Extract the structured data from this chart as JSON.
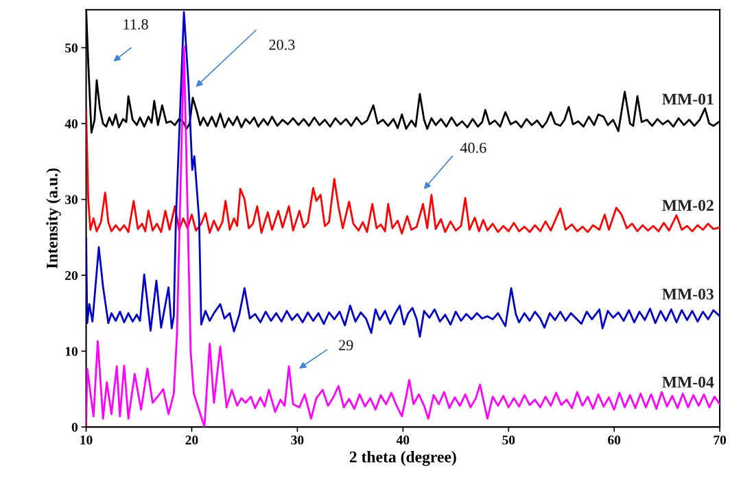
{
  "chart_data": {
    "type": "line",
    "xlabel": "2 theta (degree)",
    "ylabel": "Intensity (a.u.)",
    "xlim": [
      10,
      70
    ],
    "xticks": [
      10,
      20,
      30,
      40,
      50,
      60,
      70
    ],
    "ylim": [
      0,
      55
    ],
    "yticks": [
      0,
      10,
      20,
      30,
      40,
      50
    ],
    "annotations": [
      "11.8",
      "20.3",
      "40.6",
      "29"
    ],
    "series": [
      {
        "name": "MM-01",
        "color": "#000000",
        "x": [
          10.0,
          10.2,
          10.5,
          10.8,
          11.0,
          11.3,
          11.6,
          11.9,
          12.2,
          12.5,
          12.8,
          13.1,
          13.5,
          13.8,
          14.0,
          14.4,
          14.8,
          15.1,
          15.5,
          15.9,
          16.2,
          16.45,
          16.8,
          17.2,
          17.6,
          18.0,
          18.4,
          18.8,
          19.2,
          19.5,
          19.8,
          20.1,
          20.5,
          20.8,
          21.1,
          21.5,
          21.9,
          22.3,
          22.7,
          23.1,
          23.5,
          23.9,
          24.3,
          24.7,
          25.1,
          25.5,
          25.9,
          26.3,
          26.8,
          27.2,
          27.6,
          28.1,
          28.6,
          29.1,
          29.6,
          30.1,
          30.6,
          31.1,
          31.6,
          32.1,
          32.6,
          33.1,
          33.6,
          34.1,
          34.6,
          35.1,
          35.6,
          36.1,
          36.6,
          37.2,
          37.6,
          38.1,
          38.6,
          39.1,
          39.5,
          39.9,
          40.3,
          40.8,
          41.2,
          41.6,
          42.0,
          42.3,
          42.7,
          43.1,
          43.6,
          44.1,
          44.6,
          45.1,
          45.6,
          46.1,
          46.6,
          47.1,
          47.5,
          47.8,
          48.2,
          48.7,
          49.2,
          49.7,
          50.2,
          50.7,
          51.2,
          51.7,
          52.2,
          52.7,
          53.2,
          53.6,
          54.0,
          54.4,
          54.9,
          55.3,
          55.7,
          56.1,
          56.6,
          57.1,
          57.6,
          58.1,
          58.5,
          59.0,
          59.4,
          59.9,
          60.4,
          61.0,
          61.5,
          61.8,
          62.2,
          62.6,
          63.1,
          63.6,
          64.1,
          64.6,
          65.1,
          65.6,
          66.1,
          66.6,
          67.1,
          67.6,
          68.1,
          68.6,
          69.0,
          69.4,
          70.0
        ],
        "values": [
          55,
          48,
          38.8,
          40.5,
          45.7,
          42,
          40,
          39.6,
          40.8,
          39.8,
          41.2,
          39.5,
          40.6,
          40.2,
          43.6,
          40.5,
          39.8,
          40.8,
          39.6,
          40.9,
          40.1,
          43,
          39.8,
          42.4,
          40.1,
          40.3,
          39.8,
          40.6,
          40.2,
          39.3,
          40.0,
          43.4,
          41.5,
          39.8,
          40.8,
          39.7,
          40.9,
          39.6,
          41.3,
          39.5,
          40.7,
          39.8,
          40.9,
          39.5,
          40.6,
          40.0,
          40.8,
          39.6,
          40.6,
          39.8,
          40.9,
          39.7,
          40.5,
          39.9,
          40.7,
          39.8,
          40.6,
          39.7,
          40.8,
          39.8,
          40.5,
          39.6,
          40.7,
          39.9,
          40.6,
          39.7,
          40.8,
          39.9,
          40.4,
          42.4,
          40.0,
          40.5,
          39.7,
          40.6,
          39.4,
          41.2,
          39.3,
          40.4,
          39.6,
          43.9,
          40.5,
          39.3,
          40.7,
          39.8,
          40.6,
          39.6,
          40.8,
          39.7,
          40.3,
          39.5,
          40.6,
          39.6,
          40.2,
          41.8,
          39.9,
          40.4,
          39.6,
          41.5,
          39.9,
          40.3,
          39.5,
          40.6,
          39.8,
          40.4,
          39.5,
          40.2,
          41.5,
          40.0,
          39.7,
          40.5,
          42.2,
          39.9,
          40.3,
          39.6,
          40.9,
          39.8,
          41.2,
          40.9,
          39.8,
          40.5,
          39.0,
          44.2,
          40.0,
          39.7,
          43.6,
          40.2,
          40.5,
          39.7,
          40.6,
          39.9,
          40.4,
          39.6,
          40.7,
          39.8,
          40.5,
          39.7,
          40.5,
          42.0,
          40.0,
          39.7,
          40.3
        ]
      },
      {
        "name": "MM-02",
        "color": "#ff0000",
        "x": [
          10.0,
          10.2,
          10.4,
          10.7,
          11.0,
          11.4,
          11.8,
          12.1,
          12.4,
          12.8,
          13.2,
          13.6,
          14.0,
          14.5,
          14.9,
          15.3,
          15.6,
          15.9,
          16.3,
          16.7,
          17.1,
          17.5,
          17.9,
          18.4,
          18.8,
          19.2,
          19.6,
          20.0,
          20.4,
          20.9,
          21.3,
          21.7,
          22.1,
          22.5,
          22.9,
          23.2,
          23.6,
          24.0,
          24.3,
          24.6,
          25.0,
          25.4,
          25.8,
          26.2,
          26.6,
          27.2,
          27.6,
          28.2,
          28.6,
          29.2,
          29.6,
          30.2,
          30.6,
          31.0,
          31.5,
          31.8,
          32.2,
          32.6,
          33.0,
          33.5,
          33.9,
          34.3,
          34.9,
          35.3,
          35.8,
          36.2,
          36.6,
          37.1,
          37.5,
          37.9,
          38.3,
          38.6,
          39.0,
          39.5,
          39.9,
          40.4,
          40.8,
          41.3,
          41.9,
          42.3,
          42.7,
          43.1,
          43.6,
          44.0,
          44.5,
          45.0,
          45.5,
          45.9,
          46.3,
          46.8,
          47.2,
          47.6,
          48.0,
          48.5,
          49.0,
          49.5,
          50.0,
          50.5,
          51.0,
          51.5,
          52.0,
          52.5,
          53.0,
          53.5,
          54.0,
          54.9,
          55.4,
          56.0,
          56.5,
          57.0,
          57.5,
          58.0,
          58.6,
          59.1,
          59.5,
          60.2,
          60.7,
          61.2,
          61.7,
          62.2,
          62.7,
          63.2,
          63.7,
          64.2,
          64.7,
          65.2,
          65.9,
          66.4,
          66.9,
          67.4,
          67.9,
          68.4,
          68.9,
          69.4,
          70.0
        ],
        "values": [
          41.7,
          30,
          26,
          27.5,
          25.8,
          27,
          30.9,
          27,
          25.8,
          26.6,
          25.9,
          26.6,
          25.7,
          29.8,
          26.1,
          26.8,
          25.8,
          28.5,
          25.9,
          26.8,
          25.7,
          28.5,
          26.0,
          29.1,
          26.0,
          27.5,
          26.2,
          28.0,
          25.9,
          26.8,
          28.2,
          25.6,
          27.2,
          25.9,
          27.0,
          29.8,
          26.0,
          27.5,
          26.5,
          31.4,
          30.0,
          26.2,
          26.8,
          29.1,
          25.6,
          28.3,
          26.0,
          28.5,
          26.3,
          29.1,
          25.9,
          28.5,
          26.3,
          27.0,
          31.5,
          29.8,
          30.6,
          26.5,
          27.0,
          32.7,
          29.0,
          26.2,
          29.7,
          26.8,
          25.9,
          27.0,
          25.7,
          29.4,
          26.2,
          26.7,
          25.8,
          29.4,
          26.2,
          27.2,
          25.5,
          27.8,
          26.0,
          26.4,
          29.4,
          26.2,
          30.6,
          26.1,
          27.4,
          25.7,
          27.1,
          25.9,
          26.5,
          30.2,
          26.0,
          27.6,
          25.8,
          27.3,
          25.9,
          26.8,
          25.7,
          26.5,
          25.8,
          26.9,
          25.8,
          26.4,
          25.7,
          26.6,
          25.8,
          27.1,
          25.9,
          28.8,
          26.0,
          26.7,
          25.8,
          26.4,
          25.7,
          26.6,
          26.0,
          28.0,
          26.0,
          28.9,
          28.0,
          26.2,
          26.8,
          25.8,
          26.6,
          25.9,
          26.5,
          25.8,
          26.9,
          25.9,
          27.9,
          26.0,
          26.5,
          25.8,
          26.6,
          26.0,
          26.8,
          26.1,
          26.3
        ]
      },
      {
        "name": "MM-03",
        "color": "#0000cc",
        "x": [
          10.0,
          10.1,
          10.3,
          10.6,
          11.2,
          11.6,
          12.1,
          12.4,
          12.8,
          13.2,
          13.6,
          14.0,
          14.4,
          14.8,
          15.1,
          15.5,
          16.1,
          16.65,
          17.1,
          17.8,
          18.1,
          18.3,
          18.5,
          19.26,
          19.7,
          20.05,
          20.25,
          20.7,
          20.9,
          21.3,
          21.7,
          22.1,
          22.7,
          23.1,
          23.6,
          24.0,
          24.5,
          25.0,
          25.5,
          26.0,
          26.5,
          27.0,
          27.5,
          28.0,
          28.5,
          29.0,
          29.5,
          30.0,
          30.5,
          31.0,
          31.5,
          32.0,
          32.5,
          33.0,
          33.5,
          34.0,
          34.5,
          35.0,
          35.5,
          36.0,
          36.5,
          37.0,
          37.4,
          37.8,
          38.3,
          38.8,
          39.2,
          39.7,
          40.1,
          40.5,
          40.9,
          41.3,
          41.6,
          42.0,
          42.5,
          43.0,
          43.5,
          44.0,
          44.5,
          45.0,
          45.5,
          46.0,
          46.5,
          47.0,
          47.5,
          48.0,
          48.5,
          49.0,
          49.7,
          50.25,
          50.7,
          51.0,
          51.5,
          52.0,
          52.5,
          53.0,
          53.4,
          53.9,
          54.4,
          54.9,
          55.4,
          55.9,
          56.4,
          56.9,
          57.4,
          57.9,
          58.6,
          58.9,
          59.4,
          59.9,
          60.4,
          60.9,
          61.4,
          61.9,
          62.4,
          62.9,
          63.4,
          63.9,
          64.4,
          64.9,
          65.4,
          65.9,
          66.4,
          66.9,
          67.4,
          67.9,
          68.4,
          68.9,
          69.4,
          70.0
        ],
        "values": [
          24.9,
          13.7,
          16.2,
          13.9,
          23.7,
          18.5,
          13.7,
          15.0,
          14.0,
          15.2,
          13.8,
          15.0,
          13.9,
          14.8,
          14.0,
          20.1,
          12.7,
          19.3,
          13.1,
          18.4,
          13.0,
          14.6,
          27.3,
          54.7,
          45,
          33.9,
          35.7,
          27.3,
          13.5,
          15.3,
          14.0,
          15.0,
          16.2,
          14.3,
          15.0,
          12.6,
          14.8,
          18.3,
          14.3,
          14.9,
          13.8,
          15.2,
          14.0,
          15.0,
          13.9,
          15.3,
          14.1,
          14.9,
          13.8,
          15.1,
          14.0,
          15.0,
          13.6,
          15.1,
          14.2,
          15.2,
          13.4,
          16.0,
          13.9,
          15.1,
          14.3,
          12.4,
          15.5,
          14.1,
          15.3,
          13.6,
          14.8,
          16.0,
          13.5,
          15.0,
          15.7,
          14.2,
          11.9,
          15.3,
          14.4,
          15.5,
          13.9,
          14.8,
          13.5,
          15.2,
          14.0,
          14.9,
          14.2,
          15.0,
          14.3,
          14.6,
          14.2,
          15.0,
          13.3,
          18.3,
          14.8,
          13.8,
          15.0,
          14.0,
          15.2,
          14.3,
          13.1,
          15.0,
          14.1,
          15.2,
          14.0,
          15.0,
          14.3,
          13.6,
          15.2,
          14.2,
          15.5,
          13.0,
          15.3,
          14.4,
          15.1,
          14.0,
          15.4,
          13.8,
          15.2,
          14.1,
          15.6,
          13.7,
          15.3,
          14.0,
          15.5,
          13.8,
          15.4,
          14.1,
          15.3,
          13.9,
          15.2,
          14.2,
          15.4,
          14.6
        ]
      },
      {
        "name": "MM-04",
        "color": "#ff00ff",
        "x": [
          10.0,
          10.1,
          10.7,
          11.1,
          11.6,
          11.96,
          12.4,
          12.9,
          13.2,
          13.6,
          14.0,
          14.6,
          15.2,
          15.8,
          16.3,
          17.0,
          17.3,
          17.8,
          18.3,
          18.6,
          19.26,
          19.9,
          20.2,
          21.2,
          21.7,
          22.1,
          22.7,
          23.3,
          23.8,
          24.3,
          24.7,
          25.1,
          25.6,
          26.0,
          26.5,
          26.9,
          27.3,
          27.9,
          28.4,
          28.8,
          29.2,
          29.6,
          30.2,
          30.7,
          31.3,
          31.8,
          32.4,
          32.9,
          33.4,
          33.9,
          34.4,
          34.9,
          35.4,
          35.9,
          36.4,
          36.9,
          37.4,
          37.9,
          38.4,
          38.9,
          39.4,
          39.9,
          40.3,
          40.6,
          41.0,
          41.5,
          42.0,
          42.4,
          42.9,
          43.4,
          43.9,
          44.4,
          44.9,
          45.4,
          45.9,
          46.4,
          46.9,
          47.3,
          47.7,
          48.0,
          48.5,
          49.0,
          49.5,
          50.0,
          50.5,
          51.0,
          51.5,
          52.0,
          52.5,
          53.0,
          53.5,
          54.0,
          54.5,
          55.0,
          55.5,
          56.0,
          56.5,
          57.0,
          57.5,
          58.0,
          58.5,
          59.0,
          59.5,
          60.0,
          60.5,
          61.0,
          61.5,
          62.0,
          62.5,
          63.0,
          63.5,
          64.0,
          64.5,
          65.0,
          65.5,
          66.0,
          66.5,
          67.0,
          67.5,
          68.0,
          68.5,
          69.0,
          69.5,
          70.0
        ],
        "values": [
          0.2,
          7.7,
          1.4,
          11.3,
          1.1,
          5.9,
          1.7,
          8.0,
          1.4,
          8.1,
          1.1,
          7.0,
          2.3,
          7.7,
          3.2,
          4.4,
          5.0,
          1.7,
          4.4,
          12.2,
          50.2,
          9.9,
          4.4,
          0,
          11.0,
          3.2,
          10.6,
          2.6,
          4.9,
          2.8,
          3.8,
          3.2,
          4.0,
          2.5,
          3.9,
          2.7,
          4.9,
          2.0,
          3.6,
          2.8,
          8.0,
          3.0,
          2.6,
          4.3,
          1.1,
          3.8,
          4.9,
          2.8,
          3.9,
          5.4,
          2.6,
          3.7,
          2.4,
          4.3,
          2.7,
          3.8,
          2.3,
          4.2,
          3.0,
          4.5,
          2.8,
          1.4,
          4.0,
          6.2,
          3.0,
          4.3,
          2.8,
          1.1,
          4.2,
          3.0,
          4.6,
          2.5,
          3.9,
          2.8,
          4.3,
          2.6,
          3.8,
          5.6,
          3.0,
          1.1,
          4.0,
          2.8,
          4.1,
          2.6,
          3.8,
          2.7,
          4.2,
          2.9,
          3.6,
          2.6,
          4.0,
          2.8,
          4.5,
          2.9,
          3.6,
          2.5,
          4.6,
          2.8,
          4.0,
          2.4,
          4.3,
          2.7,
          3.9,
          2.3,
          4.5,
          2.6,
          4.2,
          2.5,
          4.4,
          2.6,
          4.3,
          2.4,
          4.6,
          2.7,
          4.1,
          2.5,
          4.4,
          2.6,
          4.2,
          2.8,
          4.3,
          2.6,
          4.0,
          3.0
        ]
      }
    ]
  }
}
